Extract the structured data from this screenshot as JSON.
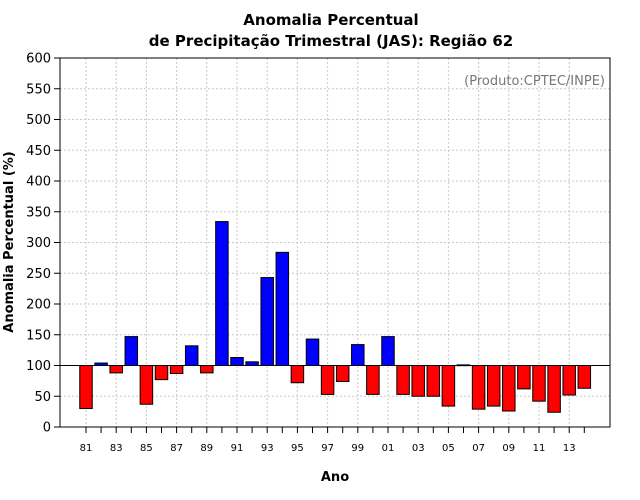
{
  "chart_data": {
    "type": "bar",
    "title_line1": "Anomalia Percentual",
    "title_line2": "de Precipitação Trimestral (JAS): Região 62",
    "xlabel": "Ano",
    "ylabel": "Anomalia Percentual (%)",
    "watermark": "(Produto:CPTEC/INPE)",
    "ylim": [
      0,
      600
    ],
    "yticks": [
      0,
      50,
      100,
      150,
      200,
      250,
      300,
      350,
      400,
      450,
      500,
      550,
      600
    ],
    "baseline": 100,
    "grid": true,
    "categories": [
      "81",
      "82",
      "83",
      "84",
      "85",
      "86",
      "87",
      "88",
      "89",
      "90",
      "91",
      "92",
      "93",
      "94",
      "95",
      "96",
      "97",
      "98",
      "99",
      "00",
      "01",
      "02",
      "03",
      "04",
      "05",
      "06",
      "07",
      "08",
      "09",
      "10",
      "11",
      "12",
      "13",
      "14"
    ],
    "xtick_labels": [
      "81",
      "83",
      "85",
      "87",
      "89",
      "91",
      "93",
      "95",
      "97",
      "99",
      "01",
      "03",
      "05",
      "07",
      "09",
      "11",
      "13"
    ],
    "values": [
      30,
      104,
      88,
      147,
      37,
      77,
      87,
      132,
      88,
      334,
      113,
      106,
      243,
      284,
      72,
      143,
      53,
      74,
      134,
      53,
      147,
      53,
      50,
      50,
      34,
      101,
      29,
      34,
      26,
      62,
      42,
      24,
      52,
      63
    ],
    "colors": {
      "above": "#0000ff",
      "below": "#ff0000",
      "edge": "#000000",
      "grid": "#c8c8c8"
    }
  }
}
